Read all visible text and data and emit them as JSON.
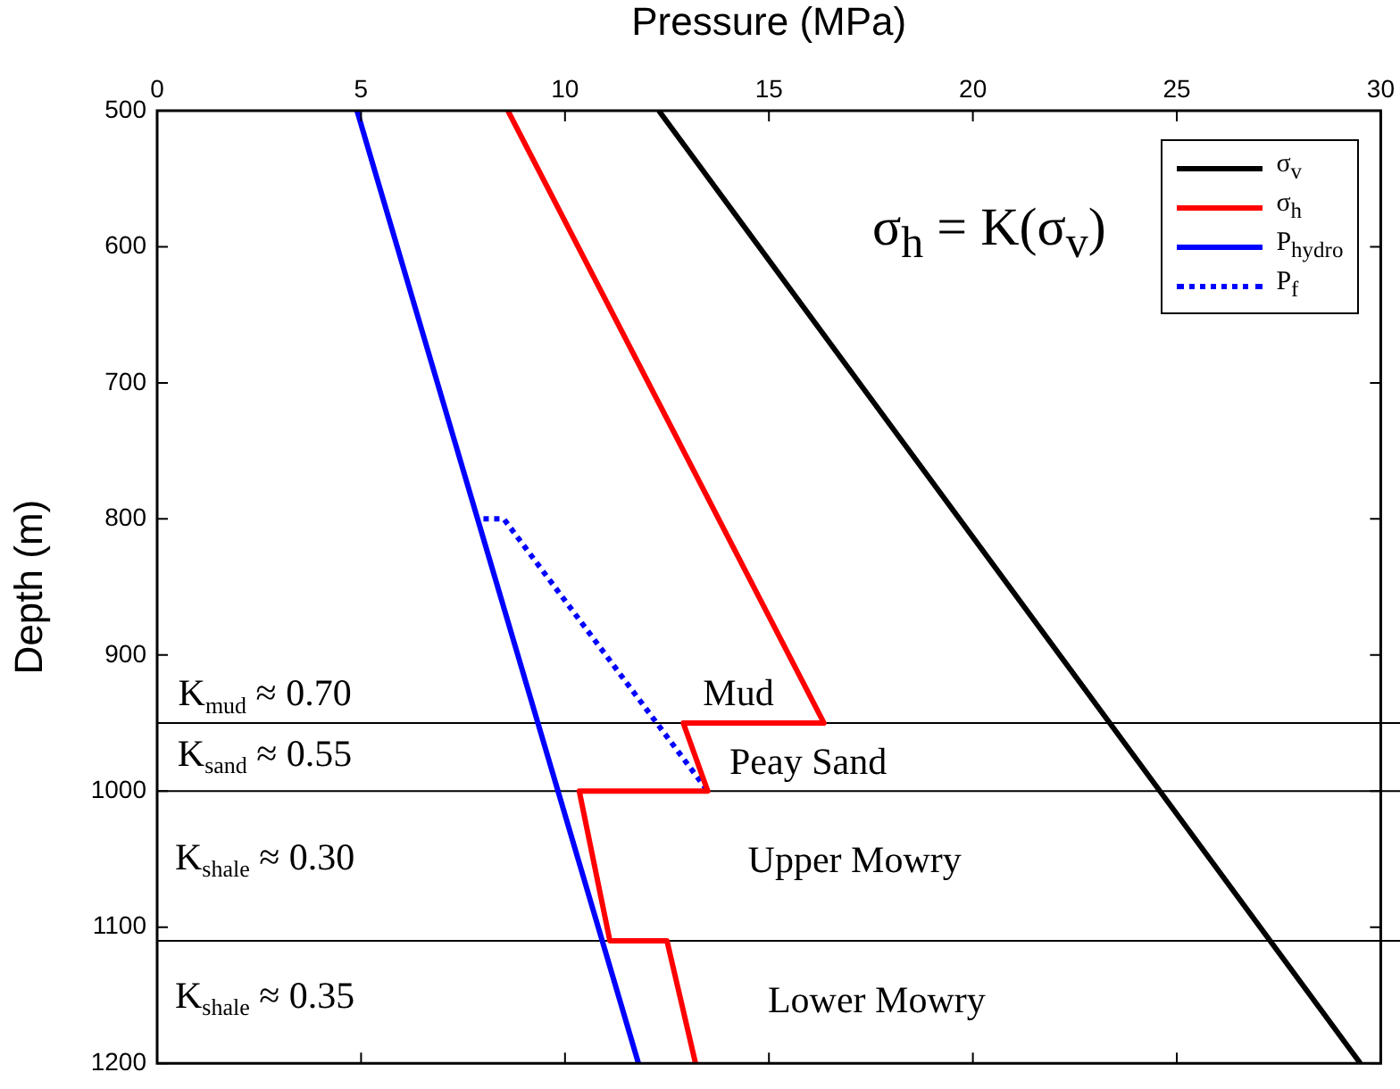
{
  "chart_data": {
    "type": "line",
    "xlabel": "Pressure (MPa)",
    "ylabel": "Depth (m)",
    "xlim": [
      0,
      30
    ],
    "xticks": [
      0,
      5,
      10,
      15,
      20,
      25,
      30
    ],
    "ylim": [
      1200,
      500
    ],
    "yticks": [
      500,
      600,
      700,
      800,
      900,
      1000,
      1100,
      1200
    ],
    "grid": false,
    "legend": "top right",
    "marker": "none",
    "series": [
      {
        "name": "σ$_{v}$",
        "color": "#000000",
        "x": [
          12.3,
          29.5
        ],
        "values": [
          500,
          1200
        ]
      },
      {
        "name": "σ$_{h}$",
        "color": "#ff0000",
        "x": [
          8.6,
          16.35,
          12.9,
          13.5,
          10.35,
          11.1,
          12.5,
          13.2
        ],
        "values": [
          500,
          950,
          950,
          1000,
          1000,
          1110,
          1110,
          1200
        ]
      },
      {
        "name": "P$_{hydro}$",
        "color": "#0000ff",
        "x": [
          4.9,
          11.8
        ],
        "values": [
          500,
          1200
        ]
      },
      {
        "name": "P$_{f}$",
        "color": "#0000ff",
        "line_style": "dotted",
        "x": [
          8.0,
          8.5,
          13.5
        ],
        "values": [
          800,
          800,
          1000
        ]
      }
    ],
    "ref_lines": [
      {
        "axis": "y",
        "value": 950,
        "color": "#000000"
      },
      {
        "axis": "y",
        "value": 1000,
        "color": "#000000"
      },
      {
        "axis": "y",
        "value": 1110,
        "color": "#000000"
      }
    ],
    "annotations": [
      "σ$_{h}$ = K(σ$_{v}$)",
      "K$_{mud}$ ≈ 0.70",
      "K$_{sand}$ ≈ 0.55",
      "K$_{shale}$ ≈ 0.30",
      "K$_{shale}$ ≈ 0.35",
      "Mud",
      "Peay Sand",
      "Upper Mowry",
      "Lower Mowry"
    ]
  }
}
